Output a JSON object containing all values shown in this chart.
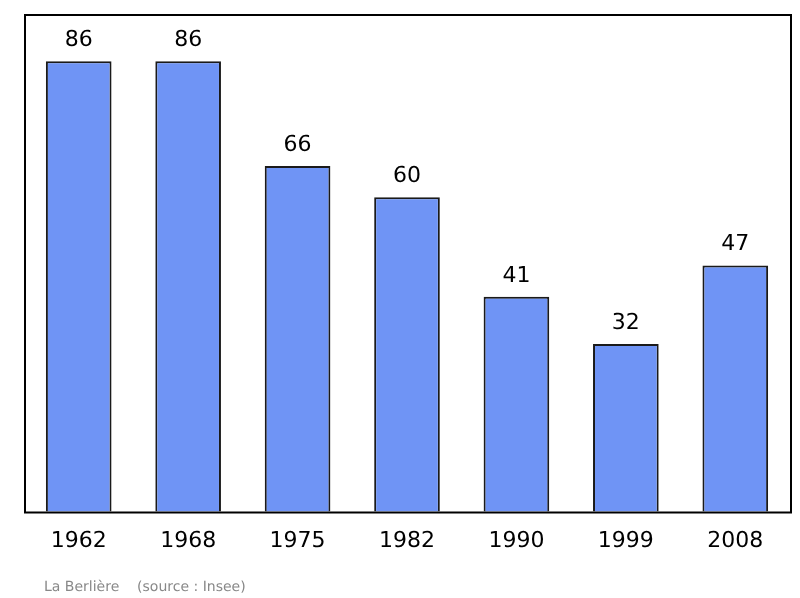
{
  "chart_data": {
    "type": "bar",
    "categories": [
      "1962",
      "1968",
      "1975",
      "1982",
      "1990",
      "1999",
      "2008"
    ],
    "values": [
      86,
      86,
      66,
      60,
      41,
      32,
      47
    ],
    "color": "#6f94f5",
    "ylim": [
      0,
      95
    ],
    "tick_labels": "x",
    "data_labels": true,
    "grid": false,
    "legend": false,
    "annotations": [
      "La Berlière    (source : Insee)"
    ]
  }
}
